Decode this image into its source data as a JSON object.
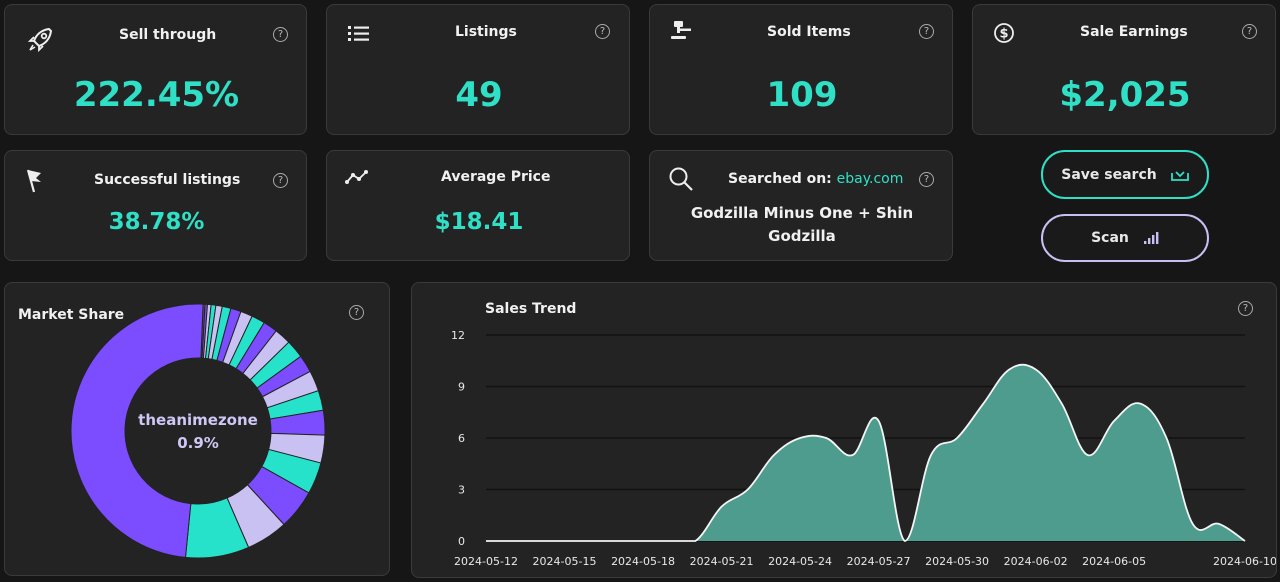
{
  "stats": {
    "sell_through": {
      "title": "Sell through",
      "value": "222.45%"
    },
    "listings": {
      "title": "Listings",
      "value": "49"
    },
    "sold_items": {
      "title": "Sold Items",
      "value": "109"
    },
    "sale_earnings": {
      "title": "Sale Earnings",
      "value": "$2,025"
    },
    "successful_listings": {
      "title": "Successful listings",
      "value": "38.78%"
    },
    "average_price": {
      "title": "Average Price",
      "value": "$18.41"
    }
  },
  "search": {
    "label": "Searched on:",
    "site": "ebay.com",
    "query_line1": "Godzilla Minus One + Shin",
    "query_line2": "Godzilla"
  },
  "buttons": {
    "save_label": "Save search",
    "scan_label": "Scan"
  },
  "help_glyph": "?",
  "market_share": {
    "title": "Market Share",
    "center_name": "theanimezone",
    "center_value": "0.9%",
    "colors": {
      "purple": "#7b4dff",
      "teal": "#27e2cb",
      "lavender": "#c9c1f2"
    }
  },
  "chart_data": {
    "type": "area",
    "title": "Sales Trend",
    "x_ticks": [
      "2024-05-12",
      "2024-05-15",
      "2024-05-18",
      "2024-05-21",
      "2024-05-24",
      "2024-05-27",
      "2024-05-30",
      "2024-06-02",
      "2024-06-05",
      "2024-06-10"
    ],
    "x": [
      "2024-05-12",
      "2024-05-13",
      "2024-05-14",
      "2024-05-15",
      "2024-05-16",
      "2024-05-17",
      "2024-05-18",
      "2024-05-19",
      "2024-05-20",
      "2024-05-21",
      "2024-05-22",
      "2024-05-23",
      "2024-05-24",
      "2024-05-25",
      "2024-05-26",
      "2024-05-27",
      "2024-05-28",
      "2024-05-29",
      "2024-05-30",
      "2024-05-31",
      "2024-06-01",
      "2024-06-02",
      "2024-06-03",
      "2024-06-04",
      "2024-06-05",
      "2024-06-06",
      "2024-06-07",
      "2024-06-08",
      "2024-06-09",
      "2024-06-10"
    ],
    "values": [
      0,
      0,
      0,
      0,
      0,
      0,
      0,
      0,
      0,
      2,
      3,
      5,
      6,
      6,
      5,
      7,
      0,
      5,
      6,
      8,
      10,
      10,
      8,
      5,
      7,
      8,
      6,
      1,
      1,
      0
    ],
    "y_ticks": [
      0,
      3,
      6,
      9,
      12
    ],
    "ylim": [
      0,
      12
    ],
    "grid": true,
    "fill_color": "#4e9c8e",
    "line_color": "#f4f4f4"
  }
}
